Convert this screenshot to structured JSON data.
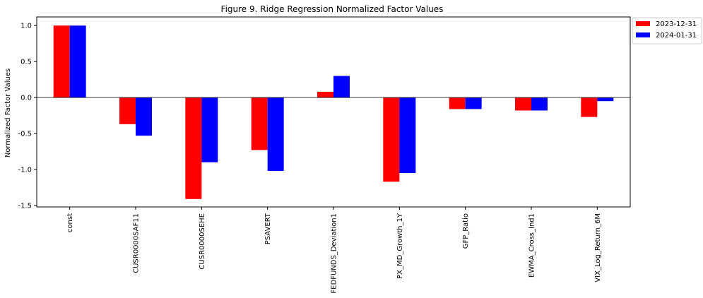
{
  "chart_data": {
    "type": "bar",
    "title": "Figure 9. Ridge Regression Normalized Factor Values",
    "xlabel": "",
    "ylabel": "Normalized Factor Values",
    "categories": [
      "const",
      "CUSR0000SAF11",
      "CUSR0000SEHE",
      "PSAVERT",
      "FEDFUNDS_Deviation1",
      "PX_MD_Growth_1Y",
      "GFP_Ratio",
      "EWMA_Cross_Ind1",
      "VIX_Log_Return_6M"
    ],
    "series": [
      {
        "name": "2023-12-31",
        "color": "#ff0000",
        "values": [
          1.0,
          -0.37,
          -1.41,
          -0.73,
          0.08,
          -1.17,
          -0.16,
          -0.18,
          -0.27
        ]
      },
      {
        "name": "2024-01-31",
        "color": "#0000ff",
        "values": [
          1.0,
          -0.53,
          -0.9,
          -1.02,
          0.3,
          -1.05,
          -0.16,
          -0.18,
          -0.05
        ]
      }
    ],
    "ylim": [
      -1.52,
      1.12
    ],
    "yticks": [
      "1.0",
      "0.5",
      "0.0",
      "-0.5",
      "-1.0",
      "-1.5"
    ],
    "grid": false,
    "legend_position": "outside-top-right"
  }
}
